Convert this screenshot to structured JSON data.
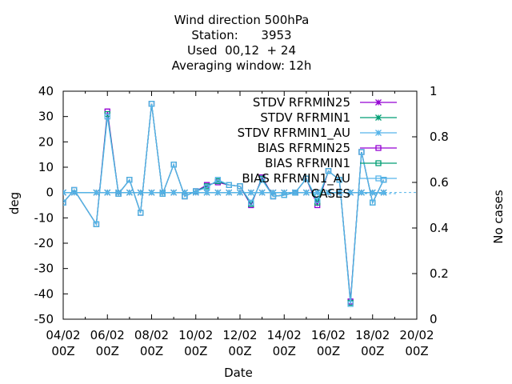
{
  "title_lines": [
    "Wind direction 500hPa",
    "Station:      3953",
    "Used  00,12  + 24",
    "Averaging window: 12h"
  ],
  "colors": {
    "purple": "#9400d3",
    "green": "#009e73",
    "skyblue": "#56b4e9"
  },
  "chart_data": {
    "type": "line",
    "xlabel": "Date",
    "ylabel": "deg",
    "y2label": "No cases",
    "ylim": [
      -50,
      40
    ],
    "y2lim": [
      0,
      1
    ],
    "xlim": [
      "04/02 00Z",
      "20/02 00Z"
    ],
    "yticks": [
      "40",
      "30",
      "20",
      "10",
      "0",
      "-10",
      "-20",
      "-30",
      "-40",
      "-50"
    ],
    "y2ticks": [
      "1",
      "0.8",
      "0.6",
      "0.4",
      "0.2",
      "0"
    ],
    "xticks": [
      {
        "top": "04/02",
        "bottom": "00Z"
      },
      {
        "top": "06/02",
        "bottom": "00Z"
      },
      {
        "top": "08/02",
        "bottom": "00Z"
      },
      {
        "top": "10/02",
        "bottom": "00Z"
      },
      {
        "top": "12/02",
        "bottom": "00Z"
      },
      {
        "top": "14/02",
        "bottom": "00Z"
      },
      {
        "top": "16/02",
        "bottom": "00Z"
      },
      {
        "top": "18/02",
        "bottom": "00Z"
      },
      {
        "top": "20/02",
        "bottom": "00Z"
      }
    ],
    "x_days": [
      4.0,
      4.5,
      5.5,
      6.0,
      6.5,
      7.0,
      7.5,
      8.0,
      8.5,
      9.0,
      9.5,
      10.0,
      10.5,
      11.0,
      11.5,
      12.0,
      12.5,
      13.0,
      13.5,
      14.0,
      14.5,
      15.0,
      15.5,
      16.0,
      16.5,
      17.0,
      17.5,
      18.0,
      18.5
    ],
    "legend_position": "top-right",
    "series": [
      {
        "name": "STDV RFRMIN25",
        "kind": "stdv",
        "color": "#9400d3",
        "values": [
          0,
          0,
          0,
          0,
          0,
          0,
          0,
          0,
          0,
          0,
          0,
          0,
          0,
          0,
          0,
          0,
          0,
          0,
          0,
          0,
          0,
          0,
          0,
          0,
          0,
          0,
          0,
          0,
          0
        ]
      },
      {
        "name": "STDV RFRMIN1",
        "kind": "stdv",
        "color": "#009e73",
        "values": [
          0,
          0,
          0,
          0,
          0,
          0,
          0,
          0,
          0,
          0,
          0,
          0,
          0,
          0,
          0,
          0,
          0,
          0,
          0,
          0,
          0,
          0,
          0,
          0,
          0,
          0,
          0,
          0,
          0
        ]
      },
      {
        "name": "STDV RFRMIN1_AU",
        "kind": "stdv",
        "color": "#56b4e9",
        "values": [
          0,
          0,
          0,
          0,
          0,
          0,
          0,
          0,
          0,
          0,
          0,
          0,
          0,
          0,
          0,
          0,
          0,
          0,
          0,
          0,
          0,
          0,
          0,
          0,
          0,
          0,
          0,
          0,
          0
        ]
      },
      {
        "name": "BIAS RFRMIN25",
        "kind": "bias",
        "color": "#9400d3",
        "values": [
          -4,
          1,
          -12.5,
          32,
          -0.5,
          5,
          -8,
          35,
          -0.5,
          11,
          -1.5,
          0.5,
          3,
          4,
          3,
          2.5,
          -5,
          6,
          -1.5,
          -1,
          0,
          5.5,
          -5,
          8.5,
          5,
          -43,
          16,
          -4,
          5
        ]
      },
      {
        "name": "BIAS RFRMIN1",
        "kind": "bias",
        "color": "#009e73",
        "values": [
          -4,
          1,
          -12.5,
          31,
          -0.5,
          5,
          -8,
          35,
          -0.5,
          11,
          -1.5,
          0.5,
          2.5,
          4.5,
          3,
          2.5,
          -4.5,
          5.5,
          -1.5,
          -1,
          0,
          5.5,
          -4,
          8.5,
          5,
          -43.5,
          16,
          -4,
          5
        ]
      },
      {
        "name": "BIAS RFRMIN1_AU",
        "kind": "bias",
        "color": "#56b4e9",
        "values": [
          -4,
          1,
          -12.5,
          30,
          -0.5,
          5,
          -8,
          35,
          -0.5,
          11,
          -1.5,
          0.5,
          2,
          5,
          3,
          2.5,
          -4,
          5,
          -1.5,
          -1,
          0,
          5.5,
          -3,
          8.5,
          5,
          -44,
          16,
          -4,
          5
        ]
      },
      {
        "name": "CASES",
        "kind": "cases",
        "color": "#56b4e9",
        "values": []
      }
    ]
  }
}
